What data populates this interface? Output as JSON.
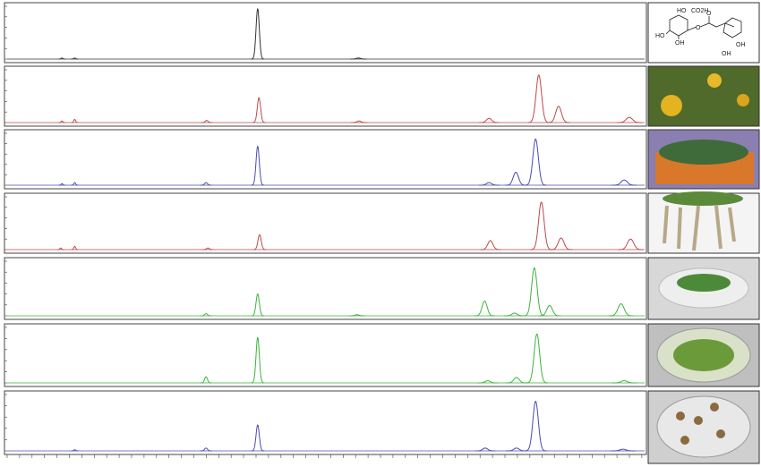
{
  "chart_data": [
    {
      "type": "line",
      "color": "#333333",
      "xlim": [
        0,
        100
      ],
      "ylim": [
        0,
        100
      ],
      "x": [
        8.6,
        10.6,
        39.3,
        55.1
      ],
      "values": [
        2,
        2,
        95,
        2
      ]
    },
    {
      "type": "line",
      "color": "#c0474a",
      "xlim": [
        0,
        100
      ],
      "ylim": [
        0,
        100
      ],
      "x": [
        8.6,
        10.6,
        31.3,
        39.5,
        55.2,
        75.6,
        83.4,
        86.5,
        97.6
      ],
      "values": [
        3,
        6,
        4,
        47,
        3,
        8,
        90,
        31,
        10
      ]
    },
    {
      "type": "line",
      "color": "#4a4ab0",
      "xlim": [
        0,
        100
      ],
      "ylim": [
        0,
        100
      ],
      "x": [
        8.6,
        10.6,
        31.2,
        39.3,
        75.6,
        79.8,
        82.9,
        96.8
      ],
      "values": [
        3,
        5,
        5,
        75,
        5,
        25,
        89,
        10
      ]
    },
    {
      "type": "line",
      "color": "#c0474a",
      "xlim": [
        0,
        100
      ],
      "ylim": [
        0,
        100
      ],
      "x": [
        8.4,
        10.6,
        31.5,
        39.6,
        75.8,
        83.8,
        86.9,
        97.8
      ],
      "values": [
        3,
        6,
        3,
        28,
        17,
        90,
        22,
        20
      ]
    },
    {
      "type": "line",
      "color": "#3db33d",
      "xlim": [
        0,
        100
      ],
      "ylim": [
        0,
        100
      ],
      "x": [
        31.2,
        39.3,
        54.9,
        74.9,
        79.6,
        82.7,
        85.1,
        96.3
      ],
      "values": [
        4,
        40,
        2,
        27,
        5,
        88,
        19,
        22
      ]
    },
    {
      "type": "line",
      "color": "#3db33d",
      "xlim": [
        0,
        100
      ],
      "ylim": [
        0,
        100
      ],
      "x": [
        31.2,
        39.3,
        75.4,
        79.9,
        83.1,
        96.8
      ],
      "values": [
        11,
        82,
        4,
        10,
        88,
        4
      ]
    },
    {
      "type": "line",
      "color": "#4a4ab0",
      "xlim": [
        0,
        100
      ],
      "ylim": [
        0,
        100
      ],
      "x": [
        10.6,
        31.2,
        39.3,
        75.0,
        79.9,
        82.9,
        96.6
      ],
      "values": [
        2,
        5,
        46,
        5,
        5,
        88,
        3
      ]
    }
  ],
  "structure": {
    "labels": [
      "HO",
      "CO2H",
      "HO",
      "OH",
      "O",
      "O",
      "OH",
      "OH"
    ]
  }
}
